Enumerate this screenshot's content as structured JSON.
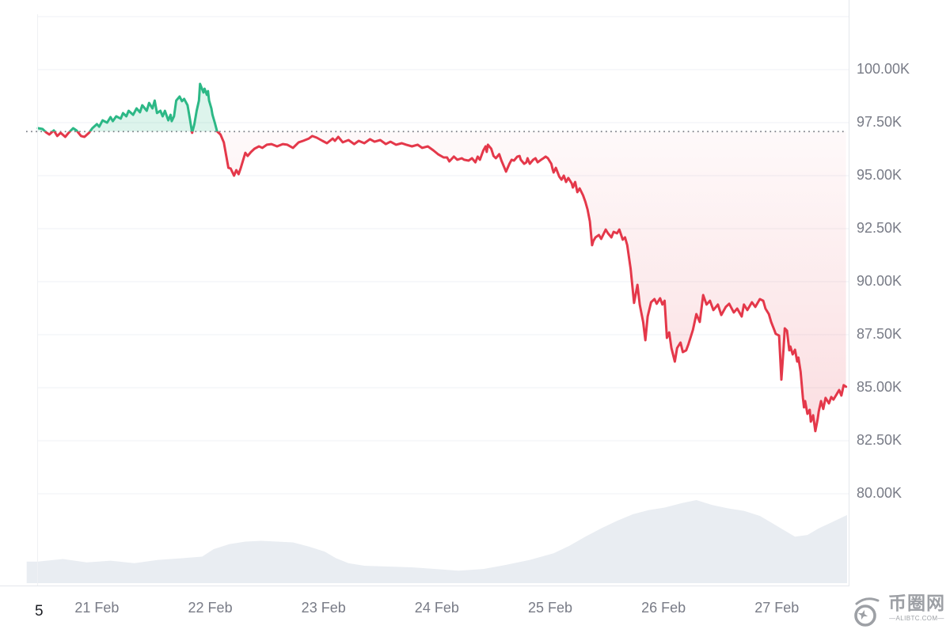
{
  "page": {
    "bottom_left_text": "5"
  },
  "watermark": {
    "site_name": "币圈网",
    "site_url_label": "—ALIBTC.COM—"
  },
  "chart_data": {
    "type": "area",
    "title": "",
    "xlabel": "",
    "ylabel": "",
    "x_unit": "day of February",
    "x_domain": [
      20.48,
      27.62
    ],
    "grid": true,
    "legend": "none",
    "baseline_value": 97080,
    "x_ticks": [
      {
        "t": 21,
        "label": "21 Feb"
      },
      {
        "t": 22,
        "label": "22 Feb"
      },
      {
        "t": 23,
        "label": "23 Feb"
      },
      {
        "t": 24,
        "label": "24 Feb"
      },
      {
        "t": 25,
        "label": "25 Feb"
      },
      {
        "t": 26,
        "label": "26 Feb"
      },
      {
        "t": 27,
        "label": "27 Feb"
      }
    ],
    "y_ticks": [
      {
        "value": 102500,
        "label": ""
      },
      {
        "value": 100000,
        "label": "100.00K"
      },
      {
        "value": 97500,
        "label": "97.50K"
      },
      {
        "value": 95000,
        "label": "95.00K"
      },
      {
        "value": 92500,
        "label": "92.50K"
      },
      {
        "value": 90000,
        "label": "90.00K"
      },
      {
        "value": 87500,
        "label": "87.50K"
      },
      {
        "value": 85000,
        "label": "85.00K"
      },
      {
        "value": 82500,
        "label": "82.50K"
      },
      {
        "value": 80000,
        "label": "80.00K"
      }
    ],
    "colors": {
      "up": "#2cb886",
      "down": "#e4384a",
      "up_fill_opacity": 0.16,
      "down_fill_opacity_top": 0.03,
      "down_fill_opacity_bottom": 0.2,
      "volume": "#e9edf2",
      "grid": "#eff1f4",
      "axis_border": "#e4e7ec",
      "baseline": "#7b7e87",
      "axis_text": "#787b86"
    },
    "price_series": [
      [
        20.48,
        97240
      ],
      [
        20.52,
        97200
      ],
      [
        20.55,
        97050
      ],
      [
        20.58,
        96940
      ],
      [
        20.62,
        97130
      ],
      [
        20.65,
        96870
      ],
      [
        20.68,
        97020
      ],
      [
        20.72,
        96830
      ],
      [
        20.75,
        97020
      ],
      [
        20.79,
        97240
      ],
      [
        20.82,
        97130
      ],
      [
        20.86,
        96870
      ],
      [
        20.89,
        96830
      ],
      [
        20.93,
        97020
      ],
      [
        20.96,
        97240
      ],
      [
        21.0,
        97430
      ],
      [
        21.02,
        97310
      ],
      [
        21.05,
        97610
      ],
      [
        21.09,
        97500
      ],
      [
        21.12,
        97760
      ],
      [
        21.14,
        97570
      ],
      [
        21.17,
        97800
      ],
      [
        21.21,
        97690
      ],
      [
        21.23,
        97950
      ],
      [
        21.26,
        97800
      ],
      [
        21.28,
        98060
      ],
      [
        21.32,
        97870
      ],
      [
        21.35,
        98170
      ],
      [
        21.38,
        97990
      ],
      [
        21.4,
        98320
      ],
      [
        21.44,
        98060
      ],
      [
        21.46,
        98430
      ],
      [
        21.49,
        98170
      ],
      [
        21.51,
        98540
      ],
      [
        21.53,
        97950
      ],
      [
        21.56,
        98060
      ],
      [
        21.58,
        97800
      ],
      [
        21.6,
        98060
      ],
      [
        21.63,
        97610
      ],
      [
        21.65,
        97870
      ],
      [
        21.66,
        97570
      ],
      [
        21.68,
        97800
      ],
      [
        21.7,
        98540
      ],
      [
        21.73,
        98730
      ],
      [
        21.75,
        98510
      ],
      [
        21.77,
        98620
      ],
      [
        21.8,
        98320
      ],
      [
        21.82,
        97690
      ],
      [
        21.84,
        97020
      ],
      [
        21.86,
        97430
      ],
      [
        21.88,
        98060
      ],
      [
        21.9,
        98540
      ],
      [
        21.91,
        99330
      ],
      [
        21.94,
        98920
      ],
      [
        21.95,
        99100
      ],
      [
        21.97,
        98810
      ],
      [
        21.98,
        98990
      ],
      [
        21.99,
        98540
      ],
      [
        22.01,
        98170
      ],
      [
        22.02,
        97870
      ],
      [
        22.04,
        97500
      ],
      [
        22.06,
        97090
      ],
      [
        22.09,
        96940
      ],
      [
        22.12,
        96570
      ],
      [
        22.16,
        95370
      ],
      [
        22.18,
        95340
      ],
      [
        22.21,
        95000
      ],
      [
        22.23,
        95260
      ],
      [
        22.25,
        95070
      ],
      [
        22.27,
        95370
      ],
      [
        22.31,
        96080
      ],
      [
        22.33,
        95930
      ],
      [
        22.36,
        96120
      ],
      [
        22.39,
        96270
      ],
      [
        22.43,
        96380
      ],
      [
        22.46,
        96310
      ],
      [
        22.5,
        96460
      ],
      [
        22.54,
        96490
      ],
      [
        22.59,
        96380
      ],
      [
        22.64,
        96490
      ],
      [
        22.68,
        96460
      ],
      [
        22.73,
        96310
      ],
      [
        22.78,
        96570
      ],
      [
        22.82,
        96640
      ],
      [
        22.87,
        96750
      ],
      [
        22.9,
        96870
      ],
      [
        22.94,
        96790
      ],
      [
        22.99,
        96640
      ],
      [
        23.03,
        96530
      ],
      [
        23.08,
        96750
      ],
      [
        23.1,
        96640
      ],
      [
        23.13,
        96830
      ],
      [
        23.17,
        96570
      ],
      [
        23.22,
        96680
      ],
      [
        23.27,
        96490
      ],
      [
        23.31,
        96640
      ],
      [
        23.36,
        96530
      ],
      [
        23.41,
        96720
      ],
      [
        23.45,
        96600
      ],
      [
        23.5,
        96680
      ],
      [
        23.55,
        96490
      ],
      [
        23.59,
        96600
      ],
      [
        23.64,
        96460
      ],
      [
        23.69,
        96530
      ],
      [
        23.73,
        96460
      ],
      [
        23.78,
        96380
      ],
      [
        23.83,
        96460
      ],
      [
        23.87,
        96310
      ],
      [
        23.92,
        96380
      ],
      [
        23.97,
        96190
      ],
      [
        24.01,
        96010
      ],
      [
        24.06,
        95860
      ],
      [
        24.09,
        95860
      ],
      [
        24.11,
        95670
      ],
      [
        24.15,
        95900
      ],
      [
        24.18,
        95750
      ],
      [
        24.22,
        95820
      ],
      [
        24.24,
        95750
      ],
      [
        24.28,
        95710
      ],
      [
        24.31,
        95820
      ],
      [
        24.34,
        95630
      ],
      [
        24.36,
        95900
      ],
      [
        24.38,
        95750
      ],
      [
        24.41,
        96190
      ],
      [
        24.43,
        96380
      ],
      [
        24.44,
        96120
      ],
      [
        24.45,
        96460
      ],
      [
        24.48,
        96270
      ],
      [
        24.5,
        95930
      ],
      [
        24.52,
        95820
      ],
      [
        24.55,
        96010
      ],
      [
        24.57,
        95710
      ],
      [
        24.59,
        95450
      ],
      [
        24.61,
        95190
      ],
      [
        24.64,
        95560
      ],
      [
        24.66,
        95750
      ],
      [
        24.68,
        95710
      ],
      [
        24.71,
        95900
      ],
      [
        24.73,
        95930
      ],
      [
        24.74,
        95750
      ],
      [
        24.77,
        95560
      ],
      [
        24.79,
        95630
      ],
      [
        24.8,
        95820
      ],
      [
        24.82,
        95560
      ],
      [
        24.85,
        95750
      ],
      [
        24.87,
        95820
      ],
      [
        24.89,
        95630
      ],
      [
        24.92,
        95750
      ],
      [
        24.94,
        95820
      ],
      [
        24.96,
        95900
      ],
      [
        24.98,
        95820
      ],
      [
        25.01,
        95560
      ],
      [
        25.02,
        95340
      ],
      [
        25.03,
        95150
      ],
      [
        25.05,
        95370
      ],
      [
        25.08,
        94960
      ],
      [
        25.1,
        94810
      ],
      [
        25.12,
        95000
      ],
      [
        25.14,
        94700
      ],
      [
        25.16,
        94890
      ],
      [
        25.19,
        94630
      ],
      [
        25.2,
        94440
      ],
      [
        25.22,
        94700
      ],
      [
        25.24,
        94220
      ],
      [
        25.26,
        94400
      ],
      [
        25.29,
        94070
      ],
      [
        25.31,
        93770
      ],
      [
        25.33,
        93400
      ],
      [
        25.35,
        92840
      ],
      [
        25.37,
        91720
      ],
      [
        25.38,
        91910
      ],
      [
        25.4,
        92090
      ],
      [
        25.43,
        92200
      ],
      [
        25.45,
        92020
      ],
      [
        25.49,
        92460
      ],
      [
        25.51,
        92280
      ],
      [
        25.54,
        92090
      ],
      [
        25.56,
        92350
      ],
      [
        25.59,
        92280
      ],
      [
        25.61,
        92460
      ],
      [
        25.64,
        91980
      ],
      [
        25.66,
        92090
      ],
      [
        25.68,
        91720
      ],
      [
        25.71,
        90600
      ],
      [
        25.74,
        89000
      ],
      [
        25.77,
        89850
      ],
      [
        25.79,
        88920
      ],
      [
        25.82,
        88100
      ],
      [
        25.84,
        87240
      ],
      [
        25.86,
        88360
      ],
      [
        25.89,
        89030
      ],
      [
        25.92,
        89180
      ],
      [
        25.94,
        88960
      ],
      [
        25.97,
        89220
      ],
      [
        25.99,
        88920
      ],
      [
        26.01,
        89100
      ],
      [
        26.03,
        87350
      ],
      [
        26.05,
        87610
      ],
      [
        26.07,
        86870
      ],
      [
        26.1,
        86230
      ],
      [
        26.12,
        86870
      ],
      [
        26.15,
        87130
      ],
      [
        26.17,
        86680
      ],
      [
        26.2,
        86760
      ],
      [
        26.22,
        87050
      ],
      [
        26.26,
        87730
      ],
      [
        26.29,
        88470
      ],
      [
        26.32,
        88100
      ],
      [
        26.35,
        89370
      ],
      [
        26.38,
        88920
      ],
      [
        26.41,
        89100
      ],
      [
        26.44,
        88660
      ],
      [
        26.48,
        88920
      ],
      [
        26.51,
        88430
      ],
      [
        26.55,
        88810
      ],
      [
        26.58,
        88960
      ],
      [
        26.62,
        88550
      ],
      [
        26.65,
        88730
      ],
      [
        26.69,
        88360
      ],
      [
        26.71,
        88920
      ],
      [
        26.74,
        88660
      ],
      [
        26.78,
        89030
      ],
      [
        26.81,
        88810
      ],
      [
        26.85,
        89180
      ],
      [
        26.88,
        89100
      ],
      [
        26.9,
        88730
      ],
      [
        26.93,
        88470
      ],
      [
        26.95,
        88100
      ],
      [
        26.98,
        87690
      ],
      [
        26.99,
        87540
      ],
      [
        27.02,
        87460
      ],
      [
        27.04,
        85380
      ],
      [
        27.06,
        86870
      ],
      [
        27.07,
        87800
      ],
      [
        27.09,
        87690
      ],
      [
        27.11,
        86760
      ],
      [
        27.12,
        86940
      ],
      [
        27.14,
        86570
      ],
      [
        27.16,
        86790
      ],
      [
        27.18,
        86230
      ],
      [
        27.19,
        86420
      ],
      [
        27.21,
        85750
      ],
      [
        27.23,
        84520
      ],
      [
        27.24,
        84070
      ],
      [
        27.25,
        84370
      ],
      [
        27.27,
        83770
      ],
      [
        27.29,
        83960
      ],
      [
        27.3,
        83400
      ],
      [
        27.32,
        83700
      ],
      [
        27.34,
        82950
      ],
      [
        27.36,
        83510
      ],
      [
        27.37,
        83880
      ],
      [
        27.39,
        84370
      ],
      [
        27.41,
        84000
      ],
      [
        27.43,
        84520
      ],
      [
        27.46,
        84260
      ],
      [
        27.48,
        84560
      ],
      [
        27.5,
        84440
      ],
      [
        27.53,
        84710
      ],
      [
        27.55,
        84890
      ],
      [
        27.57,
        84630
      ],
      [
        27.59,
        85120
      ],
      [
        27.61,
        85050
      ]
    ],
    "volume_series_note": "relative volume 0-100, no axis shown in chart",
    "volume_series": [
      [
        20.38,
        26
      ],
      [
        20.48,
        26
      ],
      [
        20.7,
        29
      ],
      [
        20.91,
        25
      ],
      [
        21.12,
        27
      ],
      [
        21.33,
        24
      ],
      [
        21.54,
        28
      ],
      [
        21.75,
        30
      ],
      [
        21.93,
        32
      ],
      [
        22.03,
        41
      ],
      [
        22.17,
        47
      ],
      [
        22.31,
        50
      ],
      [
        22.45,
        51
      ],
      [
        22.59,
        50
      ],
      [
        22.73,
        49
      ],
      [
        22.87,
        44
      ],
      [
        23.01,
        38
      ],
      [
        23.11,
        30
      ],
      [
        23.22,
        24
      ],
      [
        23.36,
        21
      ],
      [
        23.57,
        20
      ],
      [
        23.78,
        19
      ],
      [
        23.99,
        17
      ],
      [
        24.19,
        15
      ],
      [
        24.41,
        17
      ],
      [
        24.61,
        22
      ],
      [
        24.82,
        28
      ],
      [
        25.03,
        36
      ],
      [
        25.17,
        45
      ],
      [
        25.31,
        56
      ],
      [
        25.45,
        66
      ],
      [
        25.59,
        75
      ],
      [
        25.73,
        83
      ],
      [
        25.87,
        88
      ],
      [
        26.01,
        91
      ],
      [
        26.15,
        96
      ],
      [
        26.29,
        100
      ],
      [
        26.43,
        94
      ],
      [
        26.57,
        90
      ],
      [
        26.71,
        87
      ],
      [
        26.85,
        81
      ],
      [
        26.95,
        73
      ],
      [
        27.06,
        64
      ],
      [
        27.16,
        56
      ],
      [
        27.27,
        58
      ],
      [
        27.37,
        66
      ],
      [
        27.48,
        73
      ],
      [
        27.62,
        82
      ]
    ]
  }
}
